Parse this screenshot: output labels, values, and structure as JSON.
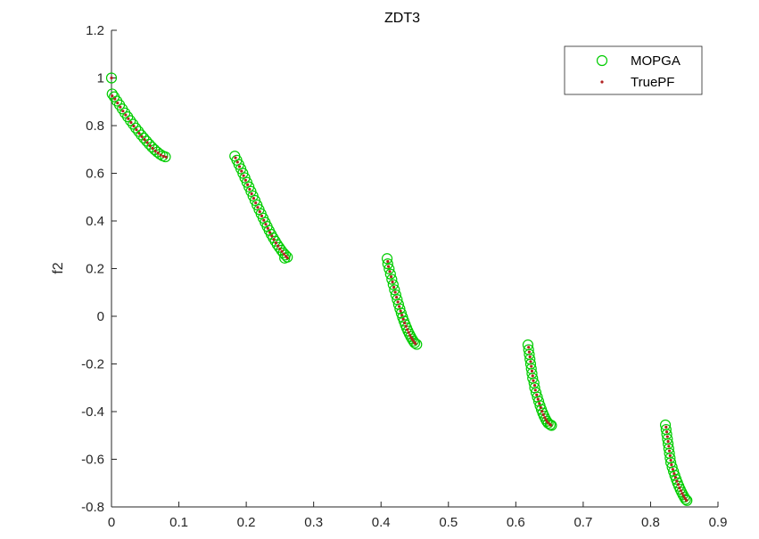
{
  "chart_data": {
    "type": "scatter",
    "title": "ZDT3",
    "xlabel": "",
    "ylabel": "f2",
    "xlim": [
      0,
      0.9
    ],
    "ylim": [
      -0.8,
      1.2
    ],
    "x_ticks": [
      "0",
      "0.1",
      "0.2",
      "0.3",
      "0.4",
      "0.5",
      "0.6",
      "0.7",
      "0.8",
      "0.9"
    ],
    "y_ticks": [
      "-0.8",
      "-0.6",
      "-0.4",
      "-0.2",
      "0",
      "0.2",
      "0.4",
      "0.6",
      "0.8",
      "1",
      "1.2"
    ],
    "grid": false,
    "legend_position": "top-right",
    "colors": {
      "mopga": "#00cc00",
      "truepf": "#b22222",
      "axis": "#262626"
    },
    "series": [
      {
        "name": "MOPGA",
        "marker": "circle-open",
        "points": [
          [
            0.0,
            1.0
          ],
          [
            0.001,
            0.933
          ],
          [
            0.004,
            0.921
          ],
          [
            0.008,
            0.903
          ],
          [
            0.012,
            0.887
          ],
          [
            0.016,
            0.87
          ],
          [
            0.02,
            0.853
          ],
          [
            0.024,
            0.837
          ],
          [
            0.028,
            0.821
          ],
          [
            0.032,
            0.806
          ],
          [
            0.036,
            0.79
          ],
          [
            0.04,
            0.776
          ],
          [
            0.044,
            0.761
          ],
          [
            0.048,
            0.748
          ],
          [
            0.052,
            0.735
          ],
          [
            0.056,
            0.722
          ],
          [
            0.06,
            0.71
          ],
          [
            0.064,
            0.699
          ],
          [
            0.068,
            0.689
          ],
          [
            0.072,
            0.68
          ],
          [
            0.076,
            0.673
          ],
          [
            0.08,
            0.669
          ],
          [
            0.183,
            0.672
          ],
          [
            0.186,
            0.655
          ],
          [
            0.189,
            0.637
          ],
          [
            0.192,
            0.619
          ],
          [
            0.195,
            0.6
          ],
          [
            0.198,
            0.581
          ],
          [
            0.201,
            0.562
          ],
          [
            0.204,
            0.543
          ],
          [
            0.207,
            0.524
          ],
          [
            0.21,
            0.505
          ],
          [
            0.213,
            0.486
          ],
          [
            0.216,
            0.467
          ],
          [
            0.219,
            0.448
          ],
          [
            0.222,
            0.43
          ],
          [
            0.225,
            0.412
          ],
          [
            0.228,
            0.394
          ],
          [
            0.231,
            0.377
          ],
          [
            0.234,
            0.36
          ],
          [
            0.237,
            0.344
          ],
          [
            0.24,
            0.329
          ],
          [
            0.243,
            0.315
          ],
          [
            0.246,
            0.301
          ],
          [
            0.249,
            0.289
          ],
          [
            0.252,
            0.277
          ],
          [
            0.255,
            0.266
          ],
          [
            0.258,
            0.257
          ],
          [
            0.261,
            0.248
          ],
          [
            0.257,
            0.244
          ],
          [
            0.409,
            0.242
          ],
          [
            0.41,
            0.22
          ],
          [
            0.412,
            0.199
          ],
          [
            0.414,
            0.177
          ],
          [
            0.416,
            0.155
          ],
          [
            0.418,
            0.133
          ],
          [
            0.42,
            0.111
          ],
          [
            0.422,
            0.09
          ],
          [
            0.424,
            0.07
          ],
          [
            0.426,
            0.05
          ],
          [
            0.428,
            0.031
          ],
          [
            0.43,
            0.013
          ],
          [
            0.432,
            -0.004
          ],
          [
            0.434,
            -0.02
          ],
          [
            0.436,
            -0.035
          ],
          [
            0.438,
            -0.049
          ],
          [
            0.44,
            -0.062
          ],
          [
            0.442,
            -0.074
          ],
          [
            0.444,
            -0.085
          ],
          [
            0.446,
            -0.095
          ],
          [
            0.448,
            -0.104
          ],
          [
            0.45,
            -0.112
          ],
          [
            0.453,
            -0.118
          ],
          [
            0.618,
            -0.12
          ],
          [
            0.619,
            -0.14
          ],
          [
            0.62,
            -0.16
          ],
          [
            0.621,
            -0.18
          ],
          [
            0.622,
            -0.2
          ],
          [
            0.623,
            -0.22
          ],
          [
            0.624,
            -0.24
          ],
          [
            0.625,
            -0.26
          ],
          [
            0.627,
            -0.28
          ],
          [
            0.628,
            -0.3
          ],
          [
            0.63,
            -0.32
          ],
          [
            0.632,
            -0.339
          ],
          [
            0.634,
            -0.357
          ],
          [
            0.636,
            -0.375
          ],
          [
            0.638,
            -0.391
          ],
          [
            0.64,
            -0.406
          ],
          [
            0.642,
            -0.419
          ],
          [
            0.644,
            -0.431
          ],
          [
            0.646,
            -0.441
          ],
          [
            0.648,
            -0.449
          ],
          [
            0.651,
            -0.455
          ],
          [
            0.653,
            -0.458
          ],
          [
            0.822,
            -0.456
          ],
          [
            0.823,
            -0.475
          ],
          [
            0.824,
            -0.495
          ],
          [
            0.825,
            -0.515
          ],
          [
            0.826,
            -0.535
          ],
          [
            0.827,
            -0.555
          ],
          [
            0.828,
            -0.575
          ],
          [
            0.829,
            -0.595
          ],
          [
            0.83,
            -0.614
          ],
          [
            0.832,
            -0.633
          ],
          [
            0.834,
            -0.651
          ],
          [
            0.836,
            -0.668
          ],
          [
            0.838,
            -0.684
          ],
          [
            0.84,
            -0.699
          ],
          [
            0.842,
            -0.713
          ],
          [
            0.844,
            -0.726
          ],
          [
            0.846,
            -0.738
          ],
          [
            0.848,
            -0.749
          ],
          [
            0.85,
            -0.759
          ],
          [
            0.852,
            -0.768
          ],
          [
            0.854,
            -0.773
          ]
        ]
      },
      {
        "name": "TruePF",
        "marker": "dot",
        "points": [
          [
            0.0,
            1.0
          ],
          [
            0.001,
            0.925
          ],
          [
            0.005,
            0.912
          ],
          [
            0.009,
            0.895
          ],
          [
            0.013,
            0.878
          ],
          [
            0.017,
            0.861
          ],
          [
            0.021,
            0.845
          ],
          [
            0.025,
            0.829
          ],
          [
            0.029,
            0.813
          ],
          [
            0.033,
            0.798
          ],
          [
            0.037,
            0.783
          ],
          [
            0.041,
            0.768
          ],
          [
            0.045,
            0.754
          ],
          [
            0.049,
            0.741
          ],
          [
            0.053,
            0.729
          ],
          [
            0.057,
            0.716
          ],
          [
            0.061,
            0.705
          ],
          [
            0.065,
            0.694
          ],
          [
            0.069,
            0.685
          ],
          [
            0.073,
            0.677
          ],
          [
            0.077,
            0.671
          ],
          [
            0.081,
            0.668
          ],
          [
            0.184,
            0.665
          ],
          [
            0.187,
            0.647
          ],
          [
            0.19,
            0.628
          ],
          [
            0.193,
            0.609
          ],
          [
            0.196,
            0.59
          ],
          [
            0.199,
            0.571
          ],
          [
            0.202,
            0.552
          ],
          [
            0.205,
            0.533
          ],
          [
            0.208,
            0.514
          ],
          [
            0.211,
            0.495
          ],
          [
            0.214,
            0.476
          ],
          [
            0.217,
            0.457
          ],
          [
            0.22,
            0.439
          ],
          [
            0.223,
            0.421
          ],
          [
            0.226,
            0.403
          ],
          [
            0.229,
            0.386
          ],
          [
            0.232,
            0.369
          ],
          [
            0.235,
            0.352
          ],
          [
            0.238,
            0.337
          ],
          [
            0.241,
            0.322
          ],
          [
            0.244,
            0.308
          ],
          [
            0.247,
            0.295
          ],
          [
            0.25,
            0.283
          ],
          [
            0.253,
            0.272
          ],
          [
            0.256,
            0.261
          ],
          [
            0.259,
            0.252
          ],
          [
            0.261,
            0.245
          ],
          [
            0.41,
            0.23
          ],
          [
            0.411,
            0.209
          ],
          [
            0.413,
            0.188
          ],
          [
            0.415,
            0.166
          ],
          [
            0.417,
            0.144
          ],
          [
            0.419,
            0.122
          ],
          [
            0.421,
            0.101
          ],
          [
            0.423,
            0.08
          ],
          [
            0.425,
            0.06
          ],
          [
            0.427,
            0.041
          ],
          [
            0.429,
            0.022
          ],
          [
            0.431,
            0.005
          ],
          [
            0.433,
            -0.012
          ],
          [
            0.435,
            -0.028
          ],
          [
            0.437,
            -0.042
          ],
          [
            0.439,
            -0.056
          ],
          [
            0.441,
            -0.068
          ],
          [
            0.443,
            -0.08
          ],
          [
            0.445,
            -0.09
          ],
          [
            0.447,
            -0.099
          ],
          [
            0.449,
            -0.108
          ],
          [
            0.451,
            -0.115
          ],
          [
            0.619,
            -0.13
          ],
          [
            0.62,
            -0.15
          ],
          [
            0.621,
            -0.17
          ],
          [
            0.622,
            -0.19
          ],
          [
            0.623,
            -0.21
          ],
          [
            0.624,
            -0.23
          ],
          [
            0.625,
            -0.25
          ],
          [
            0.626,
            -0.27
          ],
          [
            0.628,
            -0.29
          ],
          [
            0.629,
            -0.31
          ],
          [
            0.631,
            -0.33
          ],
          [
            0.633,
            -0.348
          ],
          [
            0.635,
            -0.366
          ],
          [
            0.637,
            -0.383
          ],
          [
            0.639,
            -0.399
          ],
          [
            0.641,
            -0.413
          ],
          [
            0.643,
            -0.425
          ],
          [
            0.645,
            -0.436
          ],
          [
            0.647,
            -0.445
          ],
          [
            0.65,
            -0.452
          ],
          [
            0.652,
            -0.457
          ],
          [
            0.823,
            -0.465
          ],
          [
            0.824,
            -0.485
          ],
          [
            0.825,
            -0.505
          ],
          [
            0.826,
            -0.525
          ],
          [
            0.827,
            -0.545
          ],
          [
            0.828,
            -0.565
          ],
          [
            0.829,
            -0.585
          ],
          [
            0.83,
            -0.604
          ],
          [
            0.831,
            -0.623
          ],
          [
            0.833,
            -0.642
          ],
          [
            0.835,
            -0.66
          ],
          [
            0.837,
            -0.676
          ],
          [
            0.839,
            -0.692
          ],
          [
            0.841,
            -0.706
          ],
          [
            0.843,
            -0.72
          ],
          [
            0.845,
            -0.732
          ],
          [
            0.847,
            -0.744
          ],
          [
            0.849,
            -0.754
          ],
          [
            0.851,
            -0.764
          ],
          [
            0.853,
            -0.772
          ]
        ]
      }
    ]
  }
}
